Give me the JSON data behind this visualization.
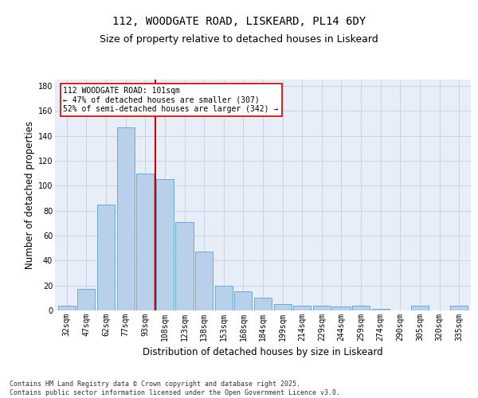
{
  "title_line1": "112, WOODGATE ROAD, LISKEARD, PL14 6DY",
  "title_line2": "Size of property relative to detached houses in Liskeard",
  "xlabel": "Distribution of detached houses by size in Liskeard",
  "ylabel": "Number of detached properties",
  "categories": [
    "32sqm",
    "47sqm",
    "62sqm",
    "77sqm",
    "93sqm",
    "108sqm",
    "123sqm",
    "138sqm",
    "153sqm",
    "168sqm",
    "184sqm",
    "199sqm",
    "214sqm",
    "229sqm",
    "244sqm",
    "259sqm",
    "274sqm",
    "290sqm",
    "305sqm",
    "320sqm",
    "335sqm"
  ],
  "values": [
    4,
    17,
    85,
    147,
    110,
    105,
    71,
    47,
    20,
    15,
    10,
    5,
    4,
    4,
    3,
    4,
    1,
    0,
    4,
    0,
    4
  ],
  "bar_color": "#b8d0ea",
  "bar_edge_color": "#6aaad4",
  "grid_color": "#c8d4e8",
  "background_color": "#e8eef8",
  "vline_index": 4.5,
  "vline_color": "#cc0000",
  "annotation_text": "112 WOODGATE ROAD: 101sqm\n← 47% of detached houses are smaller (307)\n52% of semi-detached houses are larger (342) →",
  "annotation_box_color": "#ffffff",
  "annotation_box_edge": "#cc0000",
  "ylim": [
    0,
    185
  ],
  "yticks": [
    0,
    20,
    40,
    60,
    80,
    100,
    120,
    140,
    160,
    180
  ],
  "footnote": "Contains HM Land Registry data © Crown copyright and database right 2025.\nContains public sector information licensed under the Open Government Licence v3.0.",
  "title_fontsize": 10,
  "subtitle_fontsize": 9,
  "axis_label_fontsize": 8.5,
  "tick_fontsize": 7,
  "annot_fontsize": 7,
  "footnote_fontsize": 6
}
